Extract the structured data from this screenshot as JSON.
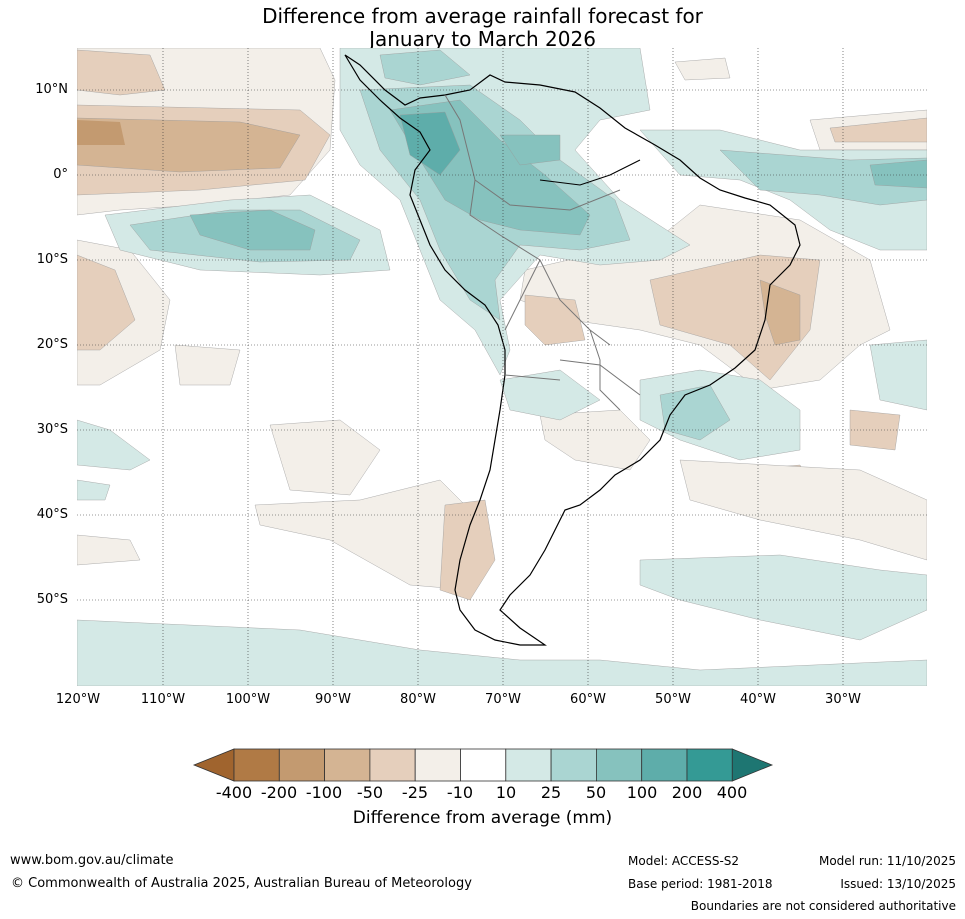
{
  "title": {
    "line1": "Difference from average rainfall forecast for",
    "line2": "January to March 2026"
  },
  "map": {
    "lat_labels": [
      "10°N",
      "0°",
      "10°S",
      "20°S",
      "30°S",
      "40°S",
      "50°S"
    ],
    "lon_labels": [
      "120°W",
      "110°W",
      "100°W",
      "90°W",
      "80°W",
      "70°W",
      "60°W",
      "50°W",
      "40°W",
      "30°W"
    ]
  },
  "colorbar": {
    "ticks": [
      "-400",
      "-200",
      "-100",
      "-50",
      "-25",
      "-10",
      "10",
      "25",
      "50",
      "100",
      "200",
      "400"
    ],
    "colors": [
      "#a0642e",
      "#b07a45",
      "#c39a70",
      "#d4b493",
      "#e5cfbc",
      "#f3efe9",
      "#ffffff",
      "#d4e9e6",
      "#aad5d2",
      "#86c2be",
      "#5eadaa",
      "#349a95",
      "#1e7672"
    ],
    "label": "Difference from average (mm)"
  },
  "footer": {
    "url": "www.bom.gov.au/climate",
    "copyright": "© Commonwealth of Australia 2025, Australian Bureau of Meteorology",
    "model": "Model: ACCESS-S2",
    "base_period": "Base period: 1981-2018",
    "model_run": "Model run: 11/10/2025",
    "issued": "Issued: 13/10/2025",
    "disclaimer": "Boundaries are not considered authoritative"
  }
}
